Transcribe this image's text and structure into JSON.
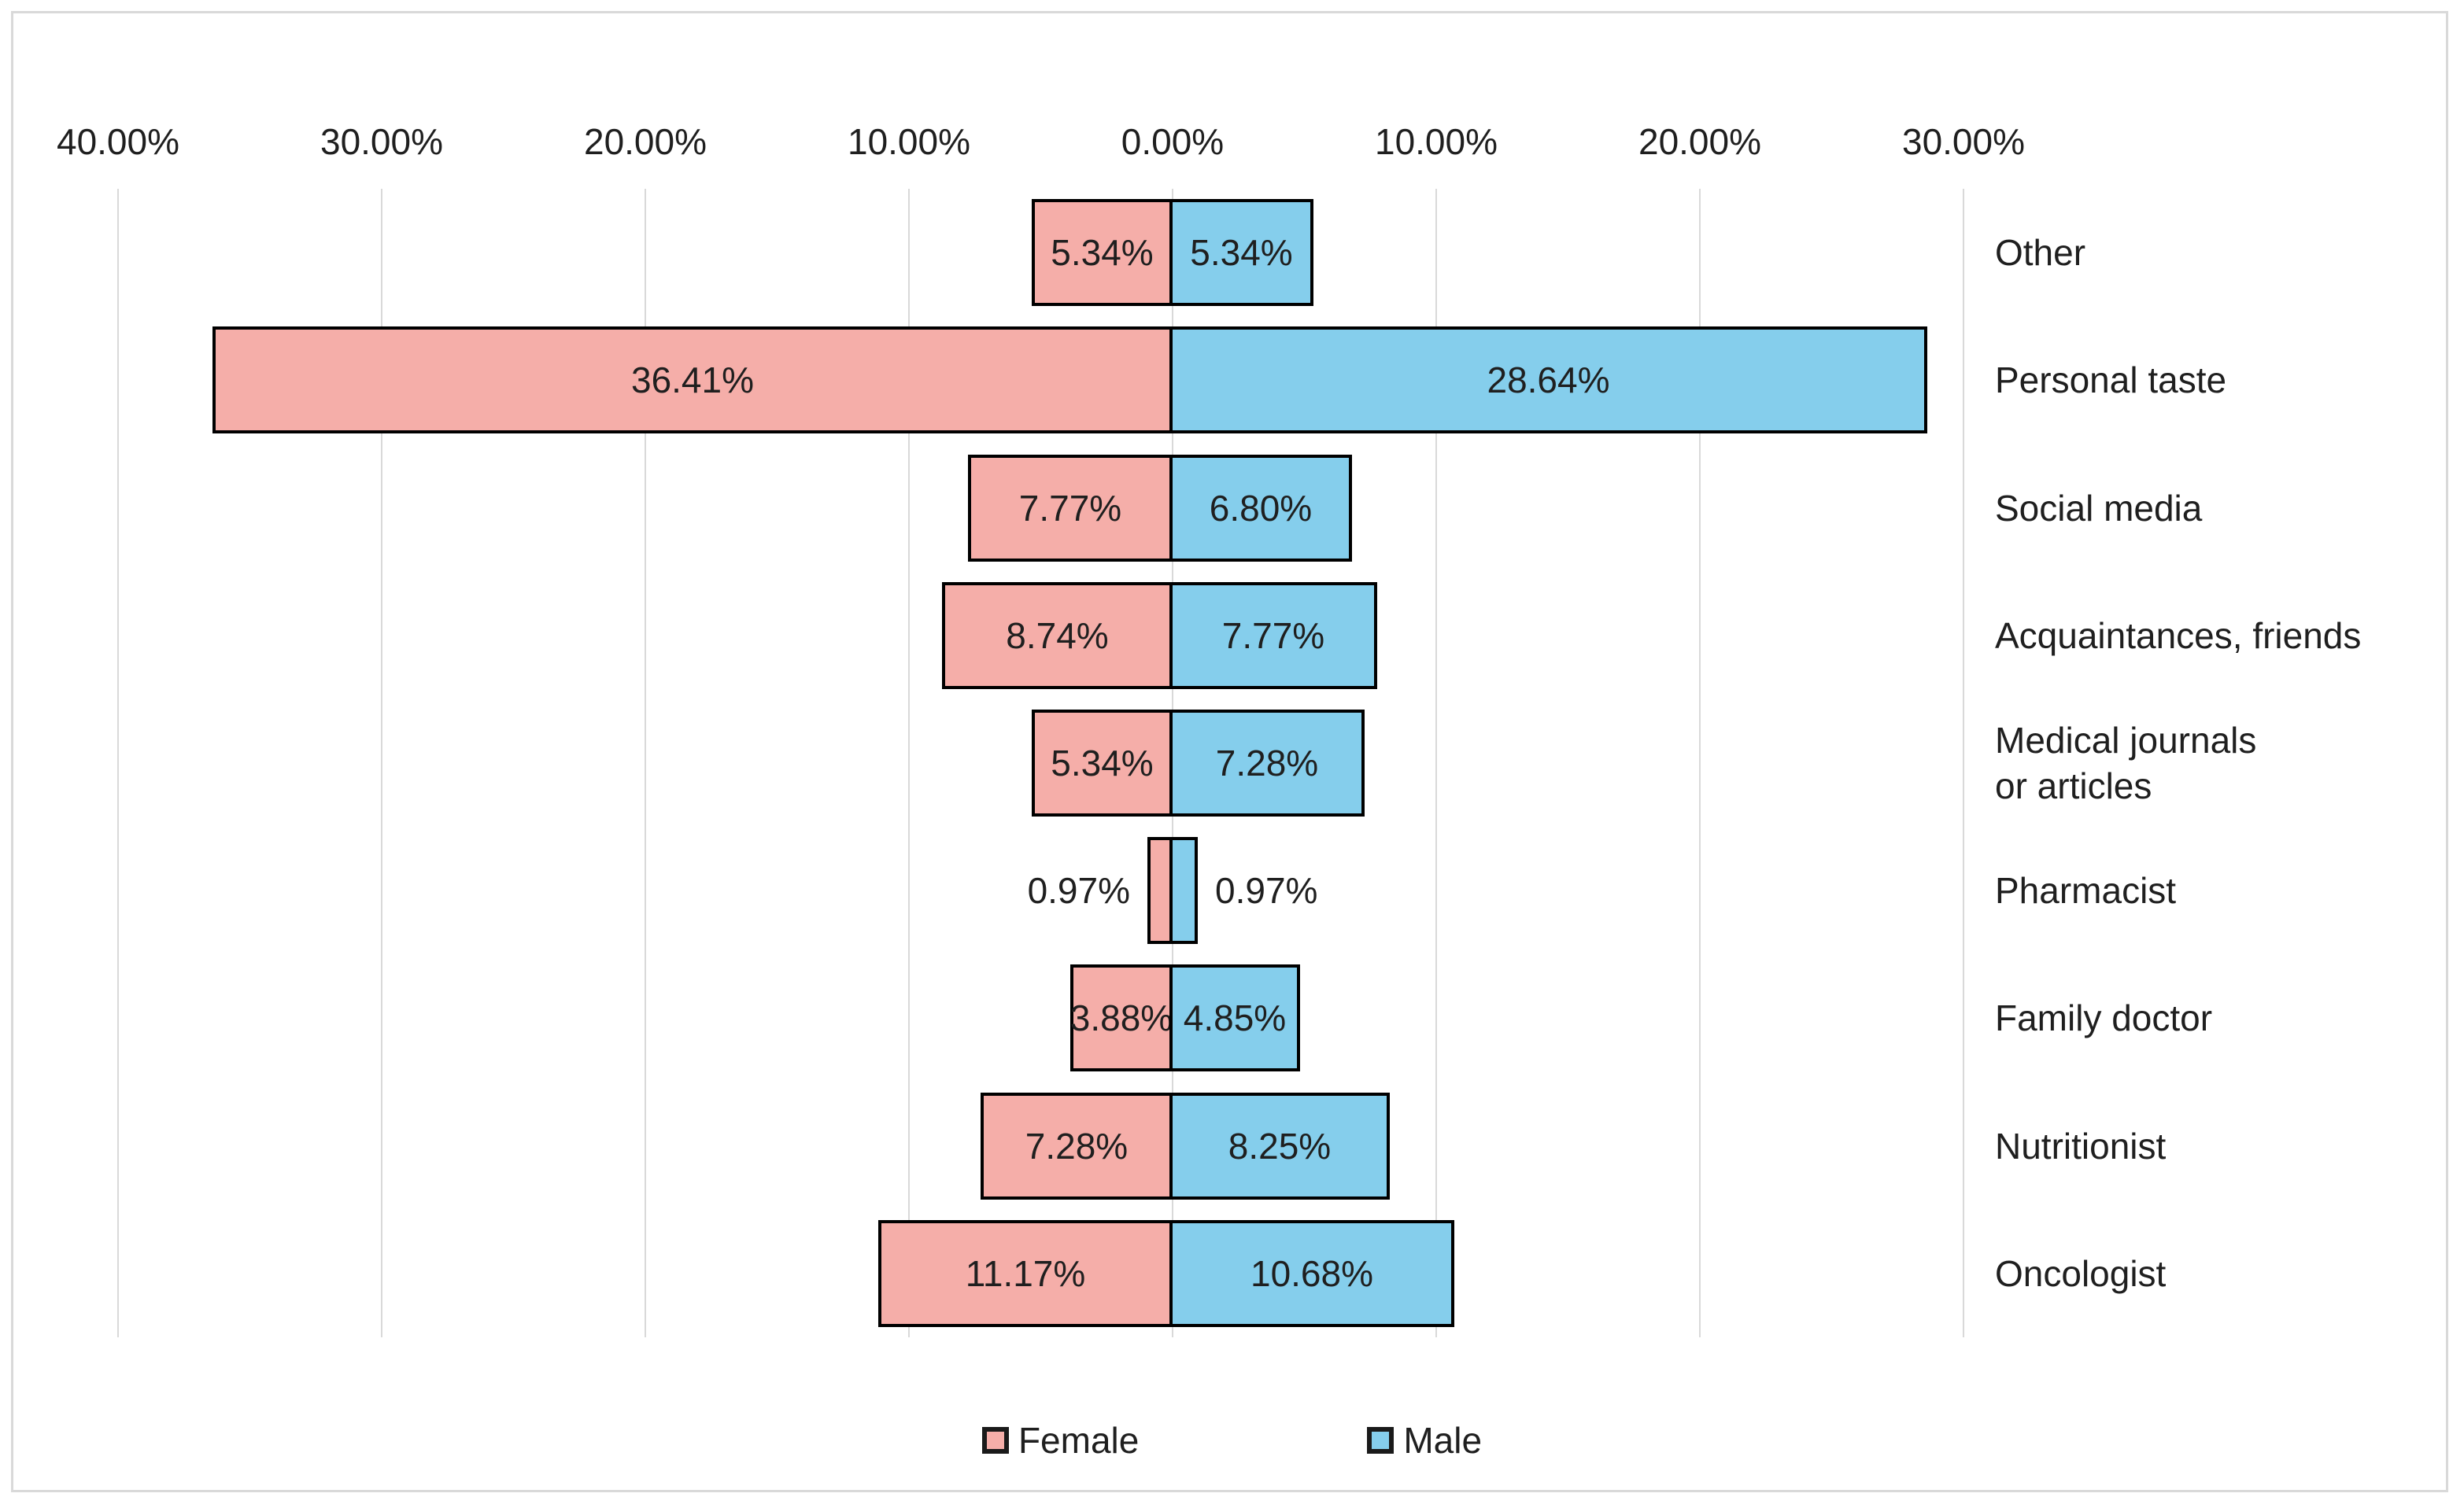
{
  "chart_data": {
    "type": "bar",
    "variant": "diverging-horizontal",
    "title": "",
    "categories": [
      "Other",
      "Personal taste",
      "Social media",
      "Acquaintances, friends",
      "Medical journals or articles",
      "Pharmacist",
      "Family doctor",
      "Nutritionist",
      "Oncologist"
    ],
    "category_lines": [
      [
        "Other"
      ],
      [
        "Personal taste"
      ],
      [
        "Social media"
      ],
      [
        "Acquaintances, friends"
      ],
      [
        "Medical journals",
        "or articles"
      ],
      [
        "Pharmacist"
      ],
      [
        "Family doctor"
      ],
      [
        "Nutritionist"
      ],
      [
        "Oncologist"
      ]
    ],
    "series": [
      {
        "name": "Female",
        "direction": "left",
        "color": "#F5AEA9",
        "values": [
          5.34,
          36.41,
          7.77,
          8.74,
          5.34,
          0.97,
          3.88,
          7.28,
          11.17
        ],
        "labels": [
          "5.34%",
          "36.41%",
          "7.77%",
          "8.74%",
          "5.34%",
          "0.97%",
          "3.88%",
          "7.28%",
          "11.17%"
        ]
      },
      {
        "name": "Male",
        "direction": "right",
        "color": "#85CEEC",
        "values": [
          5.34,
          28.64,
          6.8,
          7.77,
          7.28,
          0.97,
          4.85,
          8.25,
          10.68
        ],
        "labels": [
          "5.34%",
          "28.64%",
          "6.80%",
          "7.77%",
          "7.28%",
          "0.97%",
          "4.85%",
          "8.25%",
          "10.68%"
        ]
      }
    ],
    "label_position_per_row": [
      "inside",
      "inside",
      "inside",
      "inside",
      "inside",
      "outside",
      "inside",
      "inside",
      "inside"
    ],
    "x_axis": {
      "tick_labels": [
        "40.00%",
        "30.00%",
        "20.00%",
        "10.00%",
        "0.00%",
        "10.00%",
        "20.00%",
        "30.00%"
      ],
      "tick_values": [
        -40,
        -30,
        -20,
        -10,
        0,
        10,
        20,
        30
      ],
      "min": -40,
      "max": 30,
      "grid": true
    },
    "legend": {
      "position": "bottom-center",
      "items": [
        {
          "label": "Female",
          "color": "#F5AEA9"
        },
        {
          "label": "Male",
          "color": "#85CEEC"
        }
      ]
    },
    "style": {
      "grid_color": "#d9d9d9",
      "frame_color": "#d9d9d9",
      "bar_border_color": "#000000",
      "text_color": "#1f1f1f",
      "background": "#ffffff"
    }
  }
}
